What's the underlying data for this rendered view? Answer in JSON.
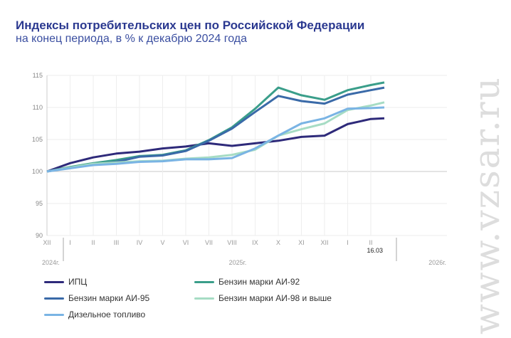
{
  "watermark": "www.vzsar.ru",
  "chart_data": {
    "type": "line",
    "title": "Индексы потребительских цен по Российской Федерации",
    "subtitle": "на конец периода, в % к декабрю 2024 года",
    "x": [
      "XII",
      "I",
      "II",
      "III",
      "IV",
      "V",
      "VI",
      "VII",
      "VIII",
      "IX",
      "X",
      "XI",
      "XII",
      "I",
      "II",
      "16.03"
    ],
    "year_labels": [
      "2024г.",
      "2025г.",
      "2026г."
    ],
    "ylim": [
      90,
      115
    ],
    "yticks": [
      90,
      95,
      100,
      105,
      110,
      115
    ],
    "grid": true,
    "legend_placement": "bottom",
    "series": [
      {
        "name": "ИПЦ",
        "color": "#2e2a7a",
        "values": [
          100,
          101.3,
          102.2,
          102.8,
          103.1,
          103.6,
          103.9,
          104.4,
          104.0,
          104.4,
          104.8,
          105.4,
          105.6,
          107.4,
          108.2,
          108.3
        ]
      },
      {
        "name": "Бензин марки АИ-92",
        "color": "#3a9e8a",
        "values": [
          100,
          100.7,
          101.3,
          101.8,
          102.4,
          102.6,
          103.3,
          104.9,
          106.9,
          109.8,
          113.1,
          111.9,
          111.2,
          112.7,
          113.5,
          113.9
        ]
      },
      {
        "name": "Бензин марки АИ-95",
        "color": "#3a6aa8",
        "values": [
          100,
          100.6,
          101.1,
          101.5,
          102.3,
          102.5,
          103.2,
          104.8,
          106.7,
          109.3,
          111.8,
          111.0,
          110.6,
          112.0,
          112.7,
          113.1
        ]
      },
      {
        "name": "Бензин марки АИ-98 и выше",
        "color": "#a6dcc4",
        "values": [
          100,
          100.6,
          101.2,
          101.4,
          101.6,
          101.7,
          102.0,
          102.2,
          102.6,
          103.4,
          105.6,
          106.6,
          107.5,
          109.6,
          110.3,
          110.8
        ]
      },
      {
        "name": "Дизельное топливо",
        "color": "#7ab4e4",
        "values": [
          100,
          100.5,
          101.0,
          101.2,
          101.5,
          101.6,
          101.9,
          101.9,
          102.1,
          103.6,
          105.6,
          107.5,
          108.3,
          109.8,
          109.9,
          110.0
        ]
      }
    ]
  }
}
